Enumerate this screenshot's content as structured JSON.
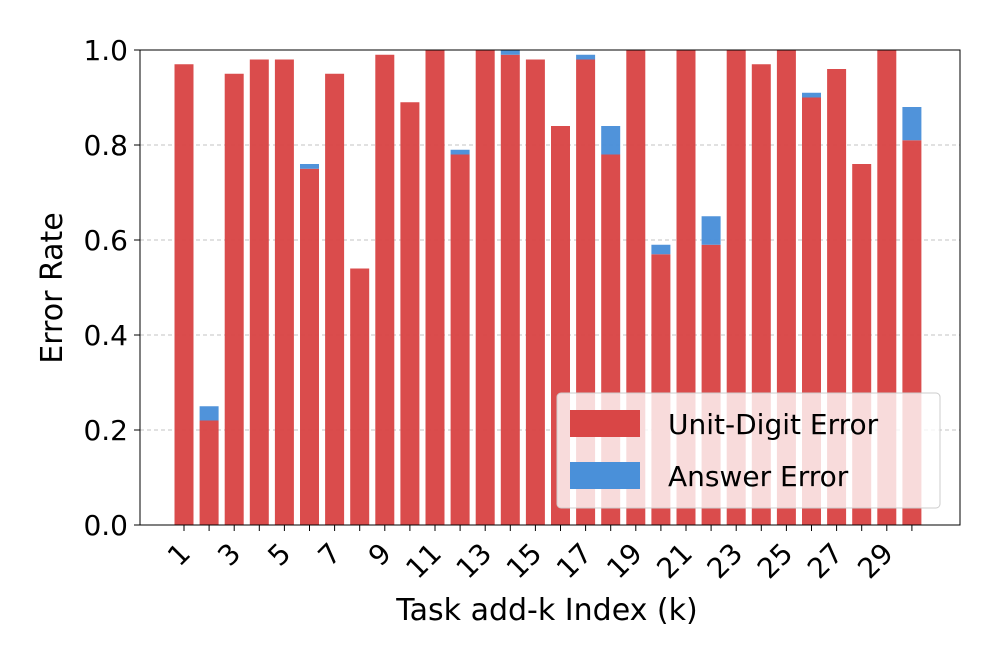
{
  "chart_data": {
    "type": "stacked_bar",
    "xlabel": "Task add-k Index (k)",
    "ylabel": "Error Rate",
    "categories": [
      "1",
      null,
      "3",
      null,
      "5",
      null,
      "7",
      null,
      "9",
      null,
      "11",
      null,
      "13",
      null,
      "15",
      null,
      "17",
      null,
      "19",
      null,
      "21",
      null,
      "23",
      null,
      "25",
      null,
      "27",
      null,
      "29",
      null
    ],
    "series": [
      {
        "name": "Unit-Digit Error",
        "color": "#d94646",
        "values": [
          0.97,
          0.22,
          0.95,
          0.98,
          0.98,
          0.75,
          0.95,
          0.54,
          0.99,
          0.89,
          1.0,
          0.78,
          1.0,
          0.99,
          0.98,
          0.84,
          0.98,
          0.78,
          1.0,
          0.57,
          1.0,
          0.59,
          1.0,
          0.97,
          1.0,
          0.9,
          0.96,
          0.76,
          1.0,
          0.81
        ]
      },
      {
        "name": "Answer Error",
        "color": "#4a90d9",
        "values": [
          0,
          0.03,
          0,
          0,
          0,
          0.01,
          0,
          0,
          0,
          0,
          0,
          0.01,
          0,
          0.01,
          0,
          0,
          0.01,
          0.06,
          0,
          0.02,
          0,
          0.06,
          0,
          0,
          0,
          0.01,
          0,
          0,
          0,
          0.07
        ]
      }
    ],
    "ylim": [
      0,
      1
    ],
    "yticks": [
      {
        "value": 0,
        "label": "0.0"
      },
      0.2,
      0.4,
      0.6,
      0.8,
      {
        "value": 1,
        "label": "1.0"
      }
    ],
    "grid": true,
    "legend": "lower right"
  }
}
